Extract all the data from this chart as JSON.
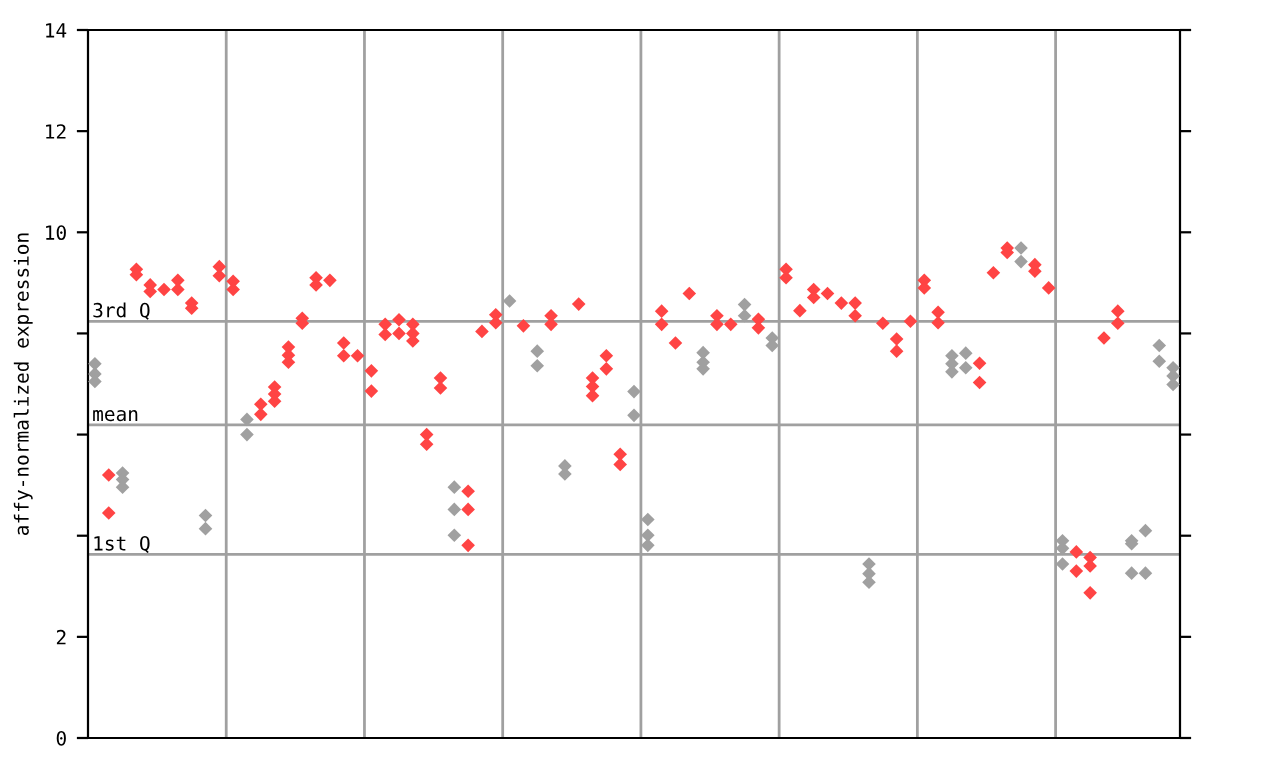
{
  "chart_data": {
    "type": "scatter",
    "ylabel": "affy-normalized expression",
    "categories": [
      null,
      null,
      null,
      null,
      null,
      null,
      null,
      null,
      null,
      null,
      null,
      null,
      null,
      null,
      null,
      null,
      null,
      null,
      null,
      null,
      null,
      null,
      null,
      null,
      null,
      null,
      null,
      null,
      null,
      null,
      null,
      null,
      null,
      null,
      null,
      null,
      null,
      null,
      null,
      null,
      null,
      null,
      null,
      null,
      null,
      null,
      null,
      null,
      null,
      null,
      null,
      null,
      null,
      null,
      null,
      null,
      null,
      null,
      null,
      null,
      null,
      null,
      null,
      null,
      null,
      null,
      null,
      null,
      null,
      null,
      null,
      null,
      null,
      null,
      null,
      null,
      null,
      null,
      null
    ],
    "series": [
      {
        "colors": [
          "#a0a0a0",
          "#ff4444",
          "#a0a0a0",
          "#ff4444",
          "#ff4444",
          "#ff4444",
          "#ff4444",
          "#ff4444",
          "#a0a0a0",
          "#ff4444",
          "#ff4444",
          "#a0a0a0",
          "#ff4444",
          "#ff4444",
          "#ff4444",
          "#ff4444",
          "#ff4444",
          "#ff4444",
          "#ff4444",
          "#ff4444",
          "#ff4444",
          "#ff4444",
          "#ff4444",
          "#ff4444",
          "#ff4444",
          "#ff4444",
          "#a0a0a0",
          "#ff4444",
          "#ff4444",
          "#ff4444",
          "#a0a0a0",
          "#ff4444",
          "#a0a0a0",
          "#ff4444",
          "#a0a0a0",
          "#ff4444",
          "#ff4444",
          "#ff4444",
          "#ff4444",
          "#a0a0a0",
          "#a0a0a0",
          "#ff4444",
          "#ff4444",
          "#ff4444",
          "#a0a0a0",
          "#ff4444",
          "#ff4444",
          "#a0a0a0",
          "#ff4444",
          "#a0a0a0",
          "#ff4444",
          "#ff4444",
          "#ff4444",
          "#ff4444",
          "#ff4444",
          "#ff4444",
          "#a0a0a0",
          "#ff4444",
          "#ff4444",
          "#ff4444",
          "#ff4444",
          "#ff4444",
          "#a0a0a0",
          "#a0a0a0",
          "#ff4444",
          "#ff4444",
          "#ff4444",
          "#a0a0a0",
          "#ff4444",
          "#ff4444",
          "#a0a0a0",
          "#ff4444",
          "#ff4444",
          "#ff4444",
          "#ff4444",
          "#a0a0a0",
          "#a0a0a0",
          "#a0a0a0",
          "#a0a0a0"
        ],
        "values": [
          7.4,
          5.2,
          5.24,
          9.27,
          8.96,
          8.87,
          9.05,
          8.6,
          4.4,
          9.32,
          9.03,
          6.3,
          6.6,
          6.94,
          7.73,
          8.3,
          9.1,
          9.05,
          7.81,
          7.56,
          7.26,
          8.18,
          8.27,
          8.18,
          6.0,
          7.12,
          4.96,
          4.88,
          8.04,
          8.37,
          8.64,
          8.15,
          7.65,
          8.35,
          5.38,
          8.58,
          7.12,
          7.56,
          5.61,
          6.85,
          4.32,
          8.44,
          7.81,
          8.79,
          7.62,
          8.35,
          8.18,
          8.57,
          8.28,
          7.91,
          9.27,
          8.45,
          8.87,
          8.79,
          8.6,
          8.6,
          3.44,
          8.2,
          7.89,
          8.24,
          9.05,
          8.42,
          7.56,
          7.61,
          7.41,
          9.2,
          9.69,
          9.69,
          9.36,
          8.9,
          3.9,
          3.68,
          3.57,
          7.91,
          8.44,
          3.9,
          4.1,
          7.76,
          7.32
        ]
      },
      {
        "colors": [
          "#a0a0a0",
          "#ff4444",
          "#a0a0a0",
          "#ff4444",
          "#ff4444",
          "#ff4444",
          "#ff4444",
          "#ff4444",
          "#a0a0a0",
          "#ff4444",
          "#ff4444",
          "#a0a0a0",
          "#ff4444",
          "#ff4444",
          "#ff4444",
          "#ff4444",
          "#ff4444",
          "#ff4444",
          "#ff4444",
          "#ff4444",
          "#ff4444",
          "#ff4444",
          "#ff4444",
          "#ff4444",
          "#ff4444",
          "#ff4444",
          "#a0a0a0",
          "#ff4444",
          "#ff4444",
          "#ff4444",
          "#a0a0a0",
          "#ff4444",
          "#a0a0a0",
          "#ff4444",
          "#a0a0a0",
          "#ff4444",
          "#ff4444",
          "#ff4444",
          "#ff4444",
          "#a0a0a0",
          "#a0a0a0",
          "#ff4444",
          "#ff4444",
          "#ff4444",
          "#a0a0a0",
          "#ff4444",
          "#ff4444",
          "#a0a0a0",
          "#ff4444",
          "#a0a0a0",
          "#ff4444",
          "#ff4444",
          "#ff4444",
          "#ff4444",
          "#ff4444",
          "#ff4444",
          "#a0a0a0",
          "#ff4444",
          "#ff4444",
          "#ff4444",
          "#ff4444",
          "#ff4444",
          "#a0a0a0",
          "#a0a0a0",
          "#ff4444",
          "#ff4444",
          "#ff4444",
          "#a0a0a0",
          "#ff4444",
          "#ff4444",
          "#a0a0a0",
          "#ff4444",
          "#ff4444",
          "#ff4444",
          "#ff4444",
          "#a0a0a0",
          "#a0a0a0",
          "#a0a0a0",
          "#a0a0a0"
        ],
        "values": [
          7.2,
          4.45,
          5.11,
          9.16,
          8.83,
          null,
          8.87,
          8.5,
          4.14,
          9.14,
          8.87,
          6.0,
          6.4,
          6.8,
          7.57,
          8.2,
          8.96,
          null,
          7.56,
          null,
          6.86,
          7.98,
          8.0,
          8.0,
          5.81,
          6.92,
          4.52,
          4.52,
          null,
          8.21,
          null,
          null,
          7.36,
          8.18,
          5.22,
          null,
          6.95,
          7.3,
          5.41,
          6.38,
          4.01,
          8.18,
          null,
          null,
          7.43,
          8.18,
          null,
          8.35,
          8.11,
          7.76,
          9.1,
          null,
          8.71,
          null,
          null,
          8.35,
          3.25,
          null,
          7.65,
          null,
          8.9,
          8.21,
          7.4,
          7.32,
          7.03,
          null,
          9.6,
          9.42,
          9.23,
          null,
          3.75,
          3.3,
          3.4,
          null,
          8.2,
          3.84,
          3.26,
          7.45,
          7.16
        ]
      },
      {
        "colors": [
          "#a0a0a0",
          "#ff4444",
          "#a0a0a0",
          "#ff4444",
          "#ff4444",
          "#ff4444",
          "#ff4444",
          "#ff4444",
          "#a0a0a0",
          "#ff4444",
          "#ff4444",
          "#a0a0a0",
          "#ff4444",
          "#ff4444",
          "#ff4444",
          "#ff4444",
          "#ff4444",
          "#ff4444",
          "#ff4444",
          "#ff4444",
          "#ff4444",
          "#ff4444",
          "#ff4444",
          "#ff4444",
          "#ff4444",
          "#ff4444",
          "#a0a0a0",
          "#ff4444",
          "#ff4444",
          "#ff4444",
          "#a0a0a0",
          "#ff4444",
          "#a0a0a0",
          "#ff4444",
          "#a0a0a0",
          "#ff4444",
          "#ff4444",
          "#ff4444",
          "#ff4444",
          "#a0a0a0",
          "#a0a0a0",
          "#ff4444",
          "#ff4444",
          "#ff4444",
          "#a0a0a0",
          "#ff4444",
          "#ff4444",
          "#a0a0a0",
          "#ff4444",
          "#a0a0a0",
          "#ff4444",
          "#ff4444",
          "#ff4444",
          "#ff4444",
          "#ff4444",
          "#ff4444",
          "#a0a0a0",
          "#ff4444",
          "#ff4444",
          "#ff4444",
          "#ff4444",
          "#ff4444",
          "#a0a0a0",
          "#a0a0a0",
          "#ff4444",
          "#ff4444",
          "#ff4444",
          "#a0a0a0",
          "#ff4444",
          "#ff4444",
          "#a0a0a0",
          "#ff4444",
          "#ff4444",
          "#ff4444",
          "#ff4444",
          "#a0a0a0",
          "#a0a0a0",
          "#a0a0a0",
          "#a0a0a0"
        ],
        "values": [
          7.05,
          null,
          4.96,
          null,
          null,
          null,
          null,
          null,
          null,
          null,
          null,
          null,
          null,
          6.66,
          7.43,
          null,
          null,
          null,
          null,
          null,
          null,
          null,
          null,
          7.85,
          null,
          null,
          4.01,
          3.81,
          null,
          null,
          null,
          null,
          null,
          null,
          null,
          null,
          6.77,
          null,
          null,
          null,
          3.81,
          null,
          null,
          null,
          7.3,
          null,
          null,
          null,
          null,
          null,
          null,
          null,
          null,
          null,
          null,
          null,
          3.08,
          null,
          null,
          null,
          null,
          null,
          7.24,
          null,
          null,
          null,
          null,
          null,
          null,
          null,
          3.44,
          null,
          2.87,
          null,
          null,
          3.26,
          null,
          null,
          6.99
        ]
      }
    ],
    "marker": "diamond",
    "ylim": [
      0,
      14
    ],
    "yticks": [
      0,
      2,
      {
        "value": 4,
        "label": null
      },
      {
        "value": 6,
        "label": null
      },
      {
        "value": 8,
        "label": null
      },
      10,
      12,
      14
    ],
    "grid": false,
    "ref_lines": [
      {
        "axis": "y",
        "value": 8.24,
        "label": "3rd Q",
        "color": "#a0a0a0"
      },
      {
        "axis": "y",
        "value": 6.19,
        "label": "mean",
        "color": "#a0a0a0"
      },
      {
        "axis": "y",
        "value": 3.63,
        "label": "1st Q",
        "color": "#a0a0a0"
      }
    ]
  }
}
